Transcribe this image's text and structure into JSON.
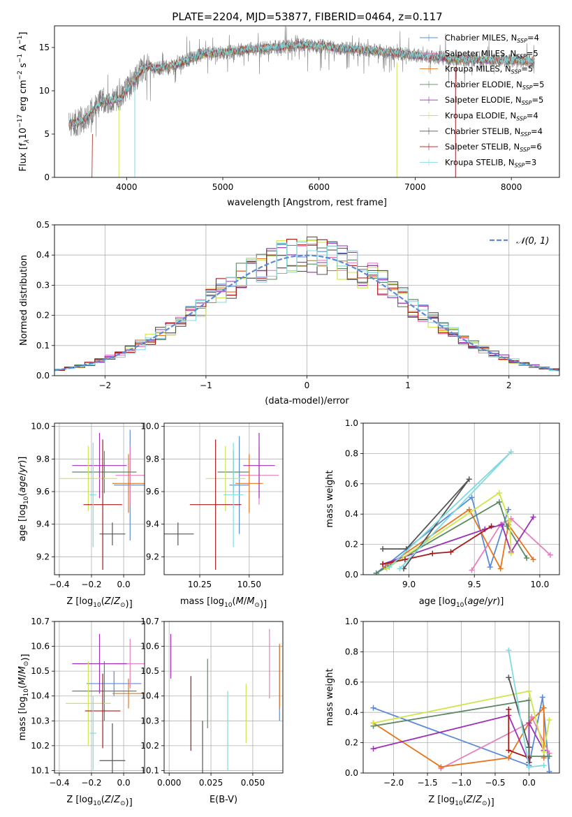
{
  "figure_title": "PLATE=2204, MJD=53877, FIBERID=0464, z=0.117",
  "colors": {
    "Chabrier MILES": "#5b8bd6",
    "Salpeter MILES": "#e67fbf",
    "Kroupa MILES": "#e8751a",
    "Chabrier ELODIE": "#5a8a62",
    "Salpeter ELODIE": "#9c2fb5",
    "Kroupa ELODIE": "#cfe54a",
    "Chabrier STELIB": "#555555",
    "Salpeter STELIB": "#a81818",
    "Kroupa STELIB": "#80dbe0"
  },
  "chart_data": [
    {
      "type": "line",
      "title": "PLATE=2204, MJD=53877, FIBERID=0464, z=0.117",
      "xlabel": "wavelength [Angstrom, rest frame]",
      "ylabel_parts": [
        "Flux [f",
        "λ",
        "10",
        "−17",
        " erg cm",
        "−2",
        " s",
        "−1",
        " A",
        "−1",
        "]"
      ],
      "xlim": [
        3250,
        8500
      ],
      "ylim": [
        0,
        17.5
      ],
      "xticks": [
        4000,
        5000,
        6000,
        7000,
        8000
      ],
      "yticks": [
        0,
        5,
        10,
        15
      ],
      "legend_position": "right",
      "series": [
        {
          "label": "Chabrier MILES, N",
          "sub": "SSP",
          "suffix": "=4"
        },
        {
          "label": "Salpeter MILES, N",
          "sub": "SSP",
          "suffix": "=5"
        },
        {
          "label": "Kroupa MILES, N",
          "sub": "SSP",
          "suffix": "=5"
        },
        {
          "label": "Chabrier ELODIE, N",
          "sub": "SSP",
          "suffix": "=5"
        },
        {
          "label": "Salpeter ELODIE, N",
          "sub": "SSP",
          "suffix": "=5"
        },
        {
          "label": "Kroupa ELODIE, N",
          "sub": "SSP",
          "suffix": "=4"
        },
        {
          "label": "Chabrier STELIB, N",
          "sub": "SSP",
          "suffix": "=4"
        },
        {
          "label": "Salpeter STELIB, N",
          "sub": "SSP",
          "suffix": "=6"
        },
        {
          "label": "Kroupa STELIB, N",
          "sub": "SSP",
          "suffix": "=3"
        }
      ],
      "observed_envelope": [
        [
          3400,
          6.2
        ],
        [
          3550,
          6.5
        ],
        [
          3650,
          7.8
        ],
        [
          3750,
          8.8
        ],
        [
          3850,
          8.9
        ],
        [
          3950,
          9.2
        ],
        [
          4000,
          10.0
        ],
        [
          4100,
          11.6
        ],
        [
          4200,
          12.8
        ],
        [
          4350,
          12.6
        ],
        [
          4500,
          12.9
        ],
        [
          4650,
          13.6
        ],
        [
          4800,
          14.2
        ],
        [
          5000,
          14.4
        ],
        [
          5200,
          14.7
        ],
        [
          5400,
          14.9
        ],
        [
          5600,
          15.1
        ],
        [
          5800,
          15.3
        ],
        [
          6000,
          15.2
        ],
        [
          6200,
          14.9
        ],
        [
          6400,
          14.8
        ],
        [
          6600,
          14.6
        ],
        [
          6800,
          14.3
        ],
        [
          7000,
          14.1
        ],
        [
          7200,
          13.9
        ],
        [
          7400,
          13.7
        ],
        [
          7600,
          13.6
        ],
        [
          7800,
          13.5
        ],
        [
          8000,
          13.5
        ],
        [
          8240,
          13.4
        ]
      ],
      "deep_lines": [
        [
          3920,
          "Kroupa ELODIE"
        ],
        [
          4085,
          "Kroupa STELIB"
        ],
        [
          6810,
          "Kroupa ELODIE"
        ],
        [
          7420,
          "Salpeter STELIB"
        ]
      ]
    },
    {
      "type": "histogram",
      "xlabel": "(data-model)/error",
      "ylabel": "Normed distribution",
      "xlim": [
        -2.5,
        2.5
      ],
      "ylim": [
        0,
        0.5
      ],
      "xticks": [
        -2,
        -1,
        0,
        1,
        2
      ],
      "yticks": [
        0.0,
        0.1,
        0.2,
        0.3,
        0.4,
        0.5
      ],
      "bin_width": 0.1,
      "legend": {
        "label": "𝒩(0, 1)",
        "position": "upper right",
        "color": "#5b8bd6"
      },
      "grid": true
    },
    {
      "type": "scatter",
      "subtype": "errorbar",
      "xlabel": "Z [log10(Z/Z⊙)]",
      "ylabel": "age  [log10(age/yr)]",
      "xlim": [
        -0.43,
        0.13
      ],
      "ylim": [
        9.09,
        10.02
      ],
      "xticks": [
        -0.4,
        -0.2,
        0.0
      ],
      "yticks": [
        9.2,
        9.4,
        9.6,
        9.8,
        10.0
      ],
      "points": [
        {
          "model": "Chabrier MILES",
          "x": 0.04,
          "xerr": 0.1,
          "y": 9.64,
          "yerr": 0.34
        },
        {
          "model": "Salpeter MILES",
          "x": 0.04,
          "xerr": 0.09,
          "y": 9.7,
          "yerr": 0.18
        },
        {
          "model": "Kroupa MILES",
          "x": 0.03,
          "xerr": 0.1,
          "y": 9.65,
          "yerr": 0.18
        },
        {
          "model": "Chabrier ELODIE",
          "x": -0.12,
          "xerr": 0.2,
          "y": 9.72,
          "yerr": 0.13
        },
        {
          "model": "Salpeter ELODIE",
          "x": -0.15,
          "xerr": 0.17,
          "y": 9.76,
          "yerr": 0.2
        },
        {
          "model": "Kroupa ELODIE",
          "x": -0.22,
          "xerr": 0.18,
          "y": 9.68,
          "yerr": 0.2
        },
        {
          "model": "Chabrier STELIB",
          "x": -0.07,
          "xerr": 0.08,
          "y": 9.34,
          "yerr": 0.07
        },
        {
          "model": "Salpeter STELIB",
          "x": -0.13,
          "xerr": 0.12,
          "y": 9.52,
          "yerr": 0.4
        },
        {
          "model": "Kroupa STELIB",
          "x": -0.19,
          "xerr": 0.02,
          "y": 9.58,
          "yerr": 0.32
        }
      ]
    },
    {
      "type": "scatter",
      "subtype": "errorbar",
      "xlabel": "mass [log10(M/M⊙)]",
      "ylabel": "",
      "xlim": [
        10.07,
        10.67
      ],
      "ylim": [
        9.09,
        10.02
      ],
      "xticks": [
        10.25,
        10.5
      ],
      "xtick_labels": [
        "10.25",
        "10.50"
      ],
      "yticks": [
        9.2,
        9.4,
        9.6,
        9.8,
        10.0
      ],
      "points": [
        {
          "model": "Chabrier MILES",
          "x": 10.45,
          "xerr": 0.05,
          "y": 9.64,
          "yerr": 0.3
        },
        {
          "model": "Salpeter MILES",
          "x": 10.55,
          "xerr": 0.1,
          "y": 9.7,
          "yerr": 0.18
        },
        {
          "model": "Kroupa MILES",
          "x": 10.5,
          "xerr": 0.07,
          "y": 9.65,
          "yerr": 0.18
        },
        {
          "model": "Chabrier ELODIE",
          "x": 10.42,
          "xerr": 0.08,
          "y": 9.72,
          "yerr": 0.13
        },
        {
          "model": "Salpeter ELODIE",
          "x": 10.55,
          "xerr": 0.08,
          "y": 9.76,
          "yerr": 0.2
        },
        {
          "model": "Kroupa ELODIE",
          "x": 10.38,
          "xerr": 0.1,
          "y": 9.68,
          "yerr": 0.2
        },
        {
          "model": "Chabrier STELIB",
          "x": 10.14,
          "xerr": 0.08,
          "y": 9.34,
          "yerr": 0.07
        },
        {
          "model": "Salpeter STELIB",
          "x": 10.33,
          "xerr": 0.13,
          "y": 9.52,
          "yerr": 0.4
        },
        {
          "model": "Kroupa STELIB",
          "x": 10.42,
          "xerr": 0.05,
          "y": 9.58,
          "yerr": 0.32
        }
      ]
    },
    {
      "type": "line",
      "xlabel": "age  [log10(age/yr)]",
      "ylabel": "mass weight",
      "xlim": [
        8.65,
        10.15
      ],
      "ylim": [
        0,
        1
      ],
      "xticks": [
        9.0,
        9.5,
        10.0
      ],
      "yticks": [
        0.0,
        0.2,
        0.4,
        0.6,
        0.8,
        1.0
      ],
      "grid": true,
      "series": [
        {
          "model": "Chabrier MILES",
          "x": [
            8.75,
            9.48,
            9.62,
            9.76
          ],
          "y": [
            0.01,
            0.51,
            0.05,
            0.43
          ]
        },
        {
          "model": "Salpeter MILES",
          "x": [
            9.48,
            9.7,
            9.78,
            10.08
          ],
          "y": [
            0.03,
            0.33,
            0.37,
            0.13
          ]
        },
        {
          "model": "Kroupa MILES",
          "x": [
            8.82,
            9.46,
            9.7,
            9.76,
            9.95
          ],
          "y": [
            0.05,
            0.43,
            0.04,
            0.33,
            0.1
          ]
        },
        {
          "model": "Chabrier ELODIE",
          "x": [
            8.75,
            9.69,
            9.75,
            9.9
          ],
          "y": [
            0.01,
            0.48,
            0.32,
            0.11
          ]
        },
        {
          "model": "Salpeter ELODIE",
          "x": [
            8.8,
            9.58,
            9.71,
            9.78,
            9.95
          ],
          "y": [
            0.07,
            0.3,
            0.33,
            0.15,
            0.38
          ]
        },
        {
          "model": "Kroupa ELODIE",
          "x": [
            8.83,
            9.69,
            9.77,
            9.78
          ],
          "y": [
            0.04,
            0.54,
            0.35,
            0.14
          ]
        },
        {
          "model": "Chabrier STELIB",
          "x": [
            8.96,
            9.46,
            8.98,
            8.8
          ],
          "y": [
            0.04,
            0.63,
            0.17,
            0.17
          ]
        },
        {
          "model": "Salpeter STELIB",
          "x": [
            8.8,
            8.97,
            9.18,
            9.32,
            9.63
          ],
          "y": [
            0.07,
            0.1,
            0.14,
            0.15,
            0.32
          ]
        },
        {
          "model": "Kroupa STELIB",
          "x": [
            8.85,
            9.78,
            8.93
          ],
          "y": [
            0.05,
            0.81,
            0.04
          ]
        }
      ]
    },
    {
      "type": "scatter",
      "subtype": "errorbar",
      "xlabel": "Z [log10(Z/Z⊙)]",
      "ylabel": "mass [log10(M/M⊙)]",
      "xlim": [
        -0.43,
        0.13
      ],
      "ylim": [
        10.09,
        10.7
      ],
      "xticks": [
        -0.4,
        -0.2,
        0.0
      ],
      "yticks": [
        10.1,
        10.2,
        10.3,
        10.4,
        10.5,
        10.6,
        10.7
      ],
      "points": [
        {
          "model": "Chabrier MILES",
          "x": -0.06,
          "xerr": 0.17,
          "y": 10.45,
          "yerr": 0.05
        },
        {
          "model": "Salpeter MILES",
          "x": 0.04,
          "xerr": 0.1,
          "y": 10.53,
          "yerr": 0.1
        },
        {
          "model": "Kroupa MILES",
          "x": 0.03,
          "xerr": 0.1,
          "y": 10.41,
          "yerr": 0.06
        },
        {
          "model": "Chabrier ELODIE",
          "x": -0.12,
          "xerr": 0.2,
          "y": 10.42,
          "yerr": 0.12
        },
        {
          "model": "Salpeter ELODIE",
          "x": -0.15,
          "xerr": 0.17,
          "y": 10.53,
          "yerr": 0.12
        },
        {
          "model": "Kroupa ELODIE",
          "x": -0.22,
          "xerr": 0.14,
          "y": 10.37,
          "yerr": 0.17
        },
        {
          "model": "Chabrier STELIB",
          "x": -0.07,
          "xerr": 0.08,
          "y": 10.14,
          "yerr": 0.15
        },
        {
          "model": "Salpeter STELIB",
          "x": -0.13,
          "xerr": 0.11,
          "y": 10.34,
          "yerr": 0.15
        },
        {
          "model": "Kroupa STELIB",
          "x": -0.19,
          "xerr": 0.02,
          "y": 10.25,
          "yerr": 0.15
        }
      ]
    },
    {
      "type": "scatter",
      "subtype": "errorbar",
      "xlabel": "E(B-V)",
      "ylabel": "",
      "xlim": [
        -0.003,
        0.068
      ],
      "ylim": [
        10.09,
        10.7
      ],
      "xticks": [
        0.0,
        0.025,
        0.05
      ],
      "xtick_labels": [
        "0.000",
        "0.025",
        "0.050"
      ],
      "yticks": [
        10.1,
        10.2,
        10.3,
        10.4,
        10.5,
        10.6,
        10.7
      ],
      "points": [
        {
          "model": "Chabrier MILES",
          "x": 0.066,
          "xerr": 0,
          "y": 10.45,
          "yerr": 0.15
        },
        {
          "model": "Salpeter MILES",
          "x": 0.06,
          "xerr": 0,
          "y": 10.53,
          "yerr": 0.14
        },
        {
          "model": "Kroupa MILES",
          "x": 0.066,
          "xerr": 0,
          "y": 10.48,
          "yerr": 0.13
        },
        {
          "model": "Chabrier ELODIE",
          "x": 0.023,
          "xerr": 0,
          "y": 10.41,
          "yerr": 0.14
        },
        {
          "model": "Salpeter ELODIE",
          "x": 0.001,
          "xerr": 0,
          "y": 10.56,
          "yerr": 0.09
        },
        {
          "model": "Kroupa ELODIE",
          "x": 0.046,
          "xerr": 0,
          "y": 10.33,
          "yerr": 0.12
        },
        {
          "model": "Chabrier STELIB",
          "x": 0.02,
          "xerr": 0,
          "y": 10.19,
          "yerr": 0.11
        },
        {
          "model": "Salpeter STELIB",
          "x": 0.013,
          "xerr": 0,
          "y": 10.33,
          "yerr": 0.15
        },
        {
          "model": "Kroupa STELIB",
          "x": 0.035,
          "xerr": 0,
          "y": 10.26,
          "yerr": 0.16
        }
      ]
    },
    {
      "type": "line",
      "xlabel": "Z [log10(Z/Z⊙)]",
      "ylabel": "mass weight",
      "xlim": [
        -2.45,
        0.45
      ],
      "ylim": [
        0,
        1
      ],
      "xticks": [
        -2.0,
        -1.5,
        -1.0,
        -0.5,
        0.0
      ],
      "yticks": [
        0.0,
        0.2,
        0.4,
        0.6,
        0.8,
        1.0
      ],
      "grid": true,
      "series": [
        {
          "model": "Chabrier MILES",
          "x": [
            -2.3,
            0.0,
            0.2,
            0.3
          ],
          "y": [
            0.43,
            0.05,
            0.5,
            0.01
          ]
        },
        {
          "model": "Salpeter MILES",
          "x": [
            -1.3,
            0.0,
            0.04,
            0.3
          ],
          "y": [
            0.03,
            0.33,
            0.37,
            0.13
          ]
        },
        {
          "model": "Kroupa MILES",
          "x": [
            -2.3,
            -1.3,
            -0.3,
            0.0,
            0.22,
            0.22
          ],
          "y": [
            0.33,
            0.04,
            0.1,
            0.33,
            0.43,
            0.1
          ]
        },
        {
          "model": "Chabrier ELODIE",
          "x": [
            -2.3,
            0.0,
            0.0,
            0.3
          ],
          "y": [
            0.31,
            0.48,
            0.11,
            0.11
          ]
        },
        {
          "model": "Salpeter ELODIE",
          "x": [
            -2.3,
            -0.3,
            0.0,
            0.0,
            0.22
          ],
          "y": [
            0.16,
            0.38,
            0.07,
            0.33,
            0.15
          ]
        },
        {
          "model": "Kroupa ELODIE",
          "x": [
            -2.3,
            0.0,
            0.22,
            0.3
          ],
          "y": [
            0.33,
            0.54,
            0.14,
            0.35
          ]
        },
        {
          "model": "Chabrier STELIB",
          "x": [
            -0.3,
            0.0,
            0.0,
            0.0
          ],
          "y": [
            0.63,
            0.17,
            0.04,
            0.17
          ]
        },
        {
          "model": "Salpeter STELIB",
          "x": [
            -0.3,
            -0.3,
            0.0,
            0.0,
            0.0
          ],
          "y": [
            0.42,
            0.15,
            0.1,
            0.07,
            0.1
          ]
        },
        {
          "model": "Kroupa STELIB",
          "x": [
            -0.3,
            0.0,
            0.22
          ],
          "y": [
            0.81,
            0.04,
            0.05
          ]
        }
      ]
    }
  ]
}
